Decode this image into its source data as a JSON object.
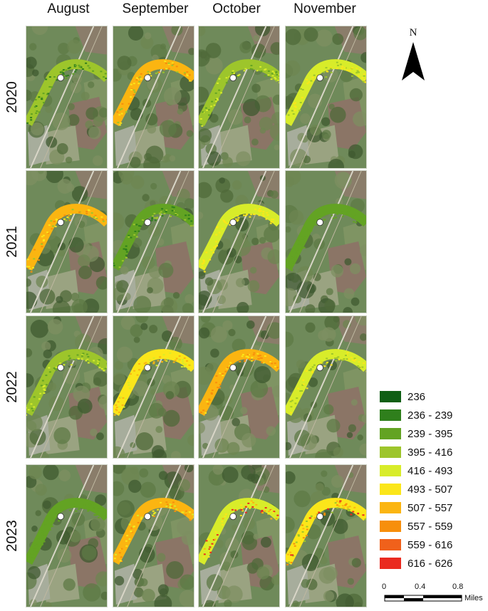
{
  "months": [
    "August",
    "September",
    "October",
    "November"
  ],
  "years": [
    "2020",
    "2021",
    "2022",
    "2023"
  ],
  "north_arrow": {
    "label": "N",
    "icon": "north-arrow-icon"
  },
  "legend": [
    {
      "label": "236",
      "color": "#0f5f14"
    },
    {
      "label": "236 - 239",
      "color": "#2f7f1c"
    },
    {
      "label": "239 - 395",
      "color": "#63a323"
    },
    {
      "label": "395 - 416",
      "color": "#9dc52b"
    },
    {
      "label": "416 - 493",
      "color": "#d8ec2a"
    },
    {
      "label": "493 - 507",
      "color": "#fbe61a"
    },
    {
      "label": "507 - 557",
      "color": "#fbb511"
    },
    {
      "label": "557 - 559",
      "color": "#f78f0c"
    },
    {
      "label": "559 - 616",
      "color": "#f0611b"
    },
    {
      "label": "616 - 626",
      "color": "#ea2a1f"
    }
  ],
  "scale_bar": {
    "ticks": [
      "0",
      "0.4",
      "0.8"
    ],
    "unit": "Miles"
  },
  "panels": [
    [
      {
        "class": 3,
        "mix": [
          2,
          1
        ]
      },
      {
        "class": 6,
        "mix": [
          5,
          7,
          3
        ]
      },
      {
        "class": 3,
        "mix": [
          2,
          4
        ]
      },
      {
        "class": 4,
        "mix": [
          5,
          3
        ]
      }
    ],
    [
      {
        "class": 6,
        "mix": [
          5,
          7,
          3
        ]
      },
      {
        "class": 2,
        "mix": [
          3,
          1
        ]
      },
      {
        "class": 4,
        "mix": [
          5
        ]
      },
      {
        "class": 2,
        "mix": [
          2
        ]
      }
    ],
    [
      {
        "class": 3,
        "mix": [
          2,
          4
        ]
      },
      {
        "class": 5,
        "mix": [
          4,
          6
        ]
      },
      {
        "class": 6,
        "mix": [
          7,
          5
        ]
      },
      {
        "class": 4,
        "mix": [
          3,
          5
        ]
      }
    ],
    [
      {
        "class": 2,
        "mix": [
          2
        ]
      },
      {
        "class": 6,
        "mix": [
          5,
          7,
          4
        ]
      },
      {
        "class": 4,
        "mix": [
          5,
          9,
          6
        ]
      },
      {
        "class": 5,
        "mix": [
          7,
          9,
          3,
          6
        ]
      }
    ]
  ]
}
